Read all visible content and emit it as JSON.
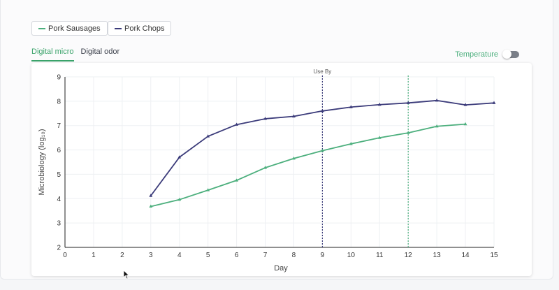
{
  "legend": [
    {
      "label": "Pork Sausages",
      "color": "#4caf7d"
    },
    {
      "label": "Pork Chops",
      "color": "#3b3b7a"
    }
  ],
  "tabs": [
    {
      "label": "Digital micro",
      "active": true
    },
    {
      "label": "Digital odor",
      "active": false
    }
  ],
  "toggle": {
    "label": "Temperature",
    "on": false
  },
  "chart_data": {
    "type": "line",
    "xlabel": "Day",
    "ylabel": "Microbiology (log₁₀)",
    "xlim": [
      0,
      15
    ],
    "ylim": [
      2,
      9
    ],
    "xticks": [
      "0",
      "1",
      "2",
      "3",
      "4",
      "5",
      "6",
      "7",
      "8",
      "9",
      "10",
      "11",
      "12",
      "13",
      "14",
      "15"
    ],
    "yticks": [
      "2",
      "3",
      "4",
      "5",
      "6",
      "7",
      "8",
      "9"
    ],
    "grid": true,
    "series": [
      {
        "name": "Pork Sausages",
        "color": "#4caf7d",
        "x": [
          3,
          4,
          5,
          6,
          7,
          8,
          9,
          10,
          11,
          12,
          13,
          14
        ],
        "y": [
          3.68,
          3.96,
          4.35,
          4.75,
          5.27,
          5.65,
          5.97,
          6.25,
          6.5,
          6.7,
          6.97,
          7.06
        ]
      },
      {
        "name": "Pork Chops",
        "color": "#3b3b7a",
        "x": [
          3,
          4,
          5,
          6,
          7,
          8,
          9,
          10,
          11,
          12,
          13,
          14,
          15
        ],
        "y": [
          4.12,
          5.7,
          6.56,
          7.04,
          7.28,
          7.38,
          7.6,
          7.76,
          7.86,
          7.93,
          8.03,
          7.85,
          7.93
        ]
      }
    ],
    "reference_lines": [
      {
        "x": 9,
        "label": "Use By",
        "color": "#3b3b7a"
      },
      {
        "x": 12,
        "label": "",
        "color": "#4caf7d"
      }
    ]
  }
}
